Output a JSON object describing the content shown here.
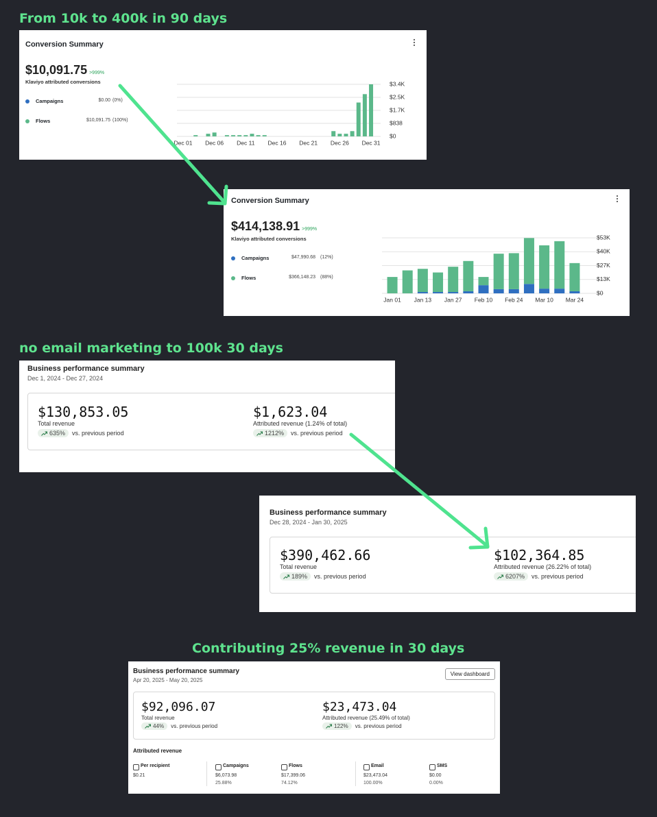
{
  "headings": [
    "From 10k to 400k in 90 days",
    "no email marketing to 100k 30 days",
    "Contributing 25% revenue in 30 days"
  ],
  "conversion_cards": [
    {
      "title": "Conversion Summary",
      "total": "$10,091.75",
      "change": ">999%",
      "subtitle": "Klaviyo attributed conversions",
      "legend": [
        {
          "amount": "$0.00",
          "share": "(0%)"
        },
        {
          "amount": "$10,091.75",
          "share": "(100%)"
        }
      ]
    },
    {
      "title": "Conversion Summary",
      "total": "$414,138.91",
      "change": ">999%",
      "subtitle": "Klaviyo attributed conversions",
      "legend": [
        {
          "amount": "$47,990.68",
          "share": "(12%)"
        },
        {
          "amount": "$366,148.23",
          "share": "(88%)"
        }
      ]
    }
  ],
  "chart_data": [
    {
      "type": "stacked-bar",
      "categories": [
        "Dec 01",
        null,
        null,
        null,
        null,
        "Dec 06",
        null,
        null,
        null,
        null,
        "Dec 11",
        null,
        null,
        null,
        null,
        "Dec 16",
        null,
        null,
        null,
        null,
        "Dec 21",
        null,
        null,
        null,
        null,
        "Dec 26",
        null,
        null,
        null,
        null,
        "Dec 31"
      ],
      "series": [
        {
          "name": "Campaigns",
          "color": "#2f6fc0",
          "values": [
            0,
            0,
            0,
            0,
            0,
            0,
            0,
            0,
            0,
            0,
            0,
            0,
            0,
            0,
            0,
            0,
            0,
            0,
            0,
            0,
            0,
            0,
            0,
            0,
            0,
            0,
            0,
            0,
            0,
            0,
            0
          ]
        },
        {
          "name": "Flows",
          "color": "#5bb88a",
          "values": [
            0,
            0,
            80,
            0,
            170,
            250,
            0,
            80,
            80,
            80,
            80,
            170,
            80,
            80,
            0,
            0,
            0,
            0,
            0,
            0,
            0,
            0,
            0,
            0,
            340,
            170,
            170,
            340,
            2180,
            2720,
            3352
          ]
        }
      ],
      "ylim": [
        0,
        3352
      ],
      "yticks": [
        {
          "value": 0,
          "label": "$0"
        },
        {
          "value": 838,
          "label": "$838"
        },
        {
          "value": 1676,
          "label": "$1.7K"
        },
        {
          "value": 2514,
          "label": "$2.5K"
        },
        {
          "value": 3352,
          "label": "$3.4K"
        }
      ],
      "grid": true
    },
    {
      "type": "stacked-bar",
      "categories": [
        "Jan 01",
        null,
        "Jan 13",
        null,
        "Jan 27",
        null,
        "Feb 10",
        null,
        "Feb 24",
        null,
        "Mar 10",
        null,
        "Mar 24"
      ],
      "series": [
        {
          "name": "Campaigns",
          "color": "#2f6fc0",
          "values": [
            0,
            0,
            1300,
            1300,
            1300,
            2000,
            7800,
            4000,
            4000,
            9000,
            4500,
            4500,
            2000
          ]
        },
        {
          "name": "Flows",
          "color": "#5bb88a",
          "values": [
            15700,
            22000,
            22200,
            18700,
            24200,
            29000,
            7900,
            34000,
            34500,
            44000,
            41500,
            45500,
            27000
          ]
        }
      ],
      "ylim": [
        0,
        53200
      ],
      "yticks": [
        {
          "value": 0,
          "label": "$0"
        },
        {
          "value": 13300,
          "label": "$13K"
        },
        {
          "value": 26600,
          "label": "$27K"
        },
        {
          "value": 39900,
          "label": "$40K"
        },
        {
          "value": 53200,
          "label": "$53K"
        }
      ],
      "grid": true
    }
  ],
  "summaries": [
    {
      "title": "Business performance summary",
      "date_range": "Dec 1, 2024 - Dec 27, 2024",
      "metrics": [
        {
          "value": "$130,853.05",
          "label": "Total revenue",
          "change": "635%",
          "compare": "vs. previous period"
        },
        {
          "value": "$1,623.04",
          "label": "Attributed revenue (1.24% of total)",
          "change": "1212%",
          "compare": "vs. previous period"
        }
      ]
    },
    {
      "title": "Business performance summary",
      "date_range": "Dec 28, 2024 - Jan 30, 2025",
      "metrics": [
        {
          "value": "$390,462.66",
          "label": "Total revenue",
          "change": "189%",
          "compare": "vs. previous period"
        },
        {
          "value": "$102,364.85",
          "label": "Attributed revenue (26.22% of total)",
          "change": "6207%",
          "compare": "vs. previous period"
        }
      ]
    },
    {
      "title": "Business performance summary",
      "date_range": "Apr 20, 2025 - May 20, 2025",
      "button": "View dashboard",
      "metrics": [
        {
          "value": "$92,096.07",
          "label": "Total revenue",
          "change": "44%",
          "compare": "vs. previous period"
        },
        {
          "value": "$23,473.04",
          "label": "Attributed revenue (25.49% of total)",
          "change": "122%",
          "compare": "vs. previous period"
        }
      ],
      "attributed": {
        "title": "Attributed revenue",
        "items": [
          {
            "label": "Per recipient",
            "value": "$0.21"
          },
          {
            "label": "Campaigns",
            "value": "$6,073.98",
            "share": "25.88%"
          },
          {
            "label": "Flows",
            "value": "$17,399.06",
            "share": "74.12%"
          },
          {
            "label": "Email",
            "value": "$23,473.04",
            "share": "100.00%"
          },
          {
            "label": "SMS",
            "value": "$0.00",
            "share": "0.00%"
          }
        ]
      }
    }
  ]
}
